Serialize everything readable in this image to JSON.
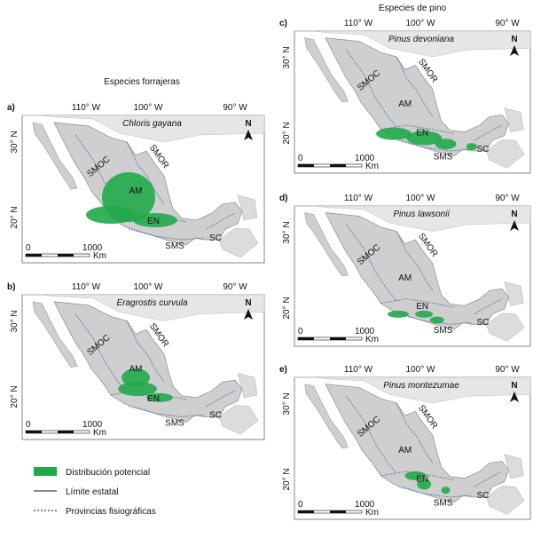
{
  "group_titles": [
    "Especies forrajeras",
    "Especies de pino"
  ],
  "panels": [
    {
      "letter": "a)",
      "species": "Chloris gayana",
      "longitude_labels": [
        "110° W",
        "100° W",
        "90° W"
      ],
      "latitude_labels": [
        "30° N",
        "20° N"
      ],
      "region_labels": [
        "SMOC",
        "SMOR",
        "AM",
        "EN",
        "SMS",
        "SC"
      ],
      "north": "N",
      "scale_labels": [
        "0",
        "1000",
        "Km"
      ]
    },
    {
      "letter": "b)",
      "species": "Eragrostis curvula",
      "longitude_labels": [
        "110° W",
        "100° W",
        "90° W"
      ],
      "latitude_labels": [
        "30° N",
        "20° N"
      ],
      "region_labels": [
        "SMOC",
        "SMOR",
        "AM",
        "EN",
        "SMS",
        "SC"
      ],
      "north": "N",
      "scale_labels": [
        "0",
        "1000",
        "Km"
      ]
    },
    {
      "letter": "c)",
      "species": "Pinus devoniana",
      "longitude_labels": [
        "110° W",
        "100° W",
        "90° W"
      ],
      "latitude_labels": [
        "30° N",
        "20° N"
      ],
      "region_labels": [
        "SMOC",
        "SMOR",
        "AM",
        "EN",
        "SMS",
        "SC"
      ],
      "north": "N",
      "scale_labels": [
        "0",
        "1000",
        "Km"
      ]
    },
    {
      "letter": "d)",
      "species": "Pinus lawsonii",
      "longitude_labels": [
        "110° W",
        "100° W",
        "90° W"
      ],
      "latitude_labels": [
        "30° N",
        "20° N"
      ],
      "region_labels": [
        "SMOC",
        "SMOR",
        "AM",
        "EN",
        "SMS",
        "SC"
      ],
      "north": "N",
      "scale_labels": [
        "0",
        "1000",
        "Km"
      ]
    },
    {
      "letter": "e)",
      "species": "Pinus montezumae",
      "longitude_labels": [
        "110° W",
        "100° W",
        "90° W"
      ],
      "latitude_labels": [
        "30° N",
        "20° N"
      ],
      "region_labels": [
        "SMOC",
        "SMOR",
        "AM",
        "EN",
        "SMS",
        "SC"
      ],
      "north": "N",
      "scale_labels": [
        "0",
        "1000",
        "Km"
      ]
    }
  ],
  "legend": [
    "Distribución potencial",
    "Límite estatal",
    "Provincias fisiográficas"
  ]
}
